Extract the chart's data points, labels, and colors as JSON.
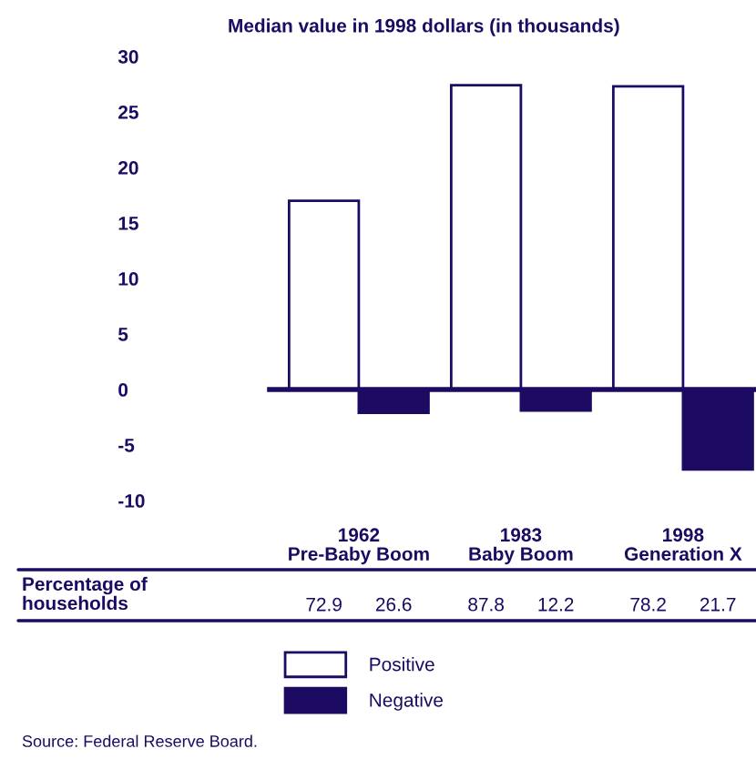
{
  "chart_data": {
    "type": "bar",
    "title": "Median value in 1998 dollars (in thousands)",
    "categories": [
      "1962\nPre-Baby Boom",
      "1983\nBaby Boom",
      "1998\nGeneration X"
    ],
    "series": [
      {
        "name": "Positive",
        "color": "#ffffff",
        "values": [
          17,
          27.4,
          27.3
        ]
      },
      {
        "name": "Negative",
        "color": "#1c0a63",
        "values": [
          -2.1,
          -1.9,
          -7.2
        ]
      }
    ],
    "ylim": [
      -10,
      30
    ],
    "yticks": [
      -10,
      -5,
      0,
      5,
      10,
      15,
      20,
      25,
      30
    ],
    "grid": false,
    "legend": "bottom",
    "annotations": [
      "Percentage of\nhouseholds",
      "72.9",
      "26.6",
      "87.8",
      "12.2",
      "78.2",
      "21.7",
      "Source: Federal Reserve Board."
    ]
  }
}
